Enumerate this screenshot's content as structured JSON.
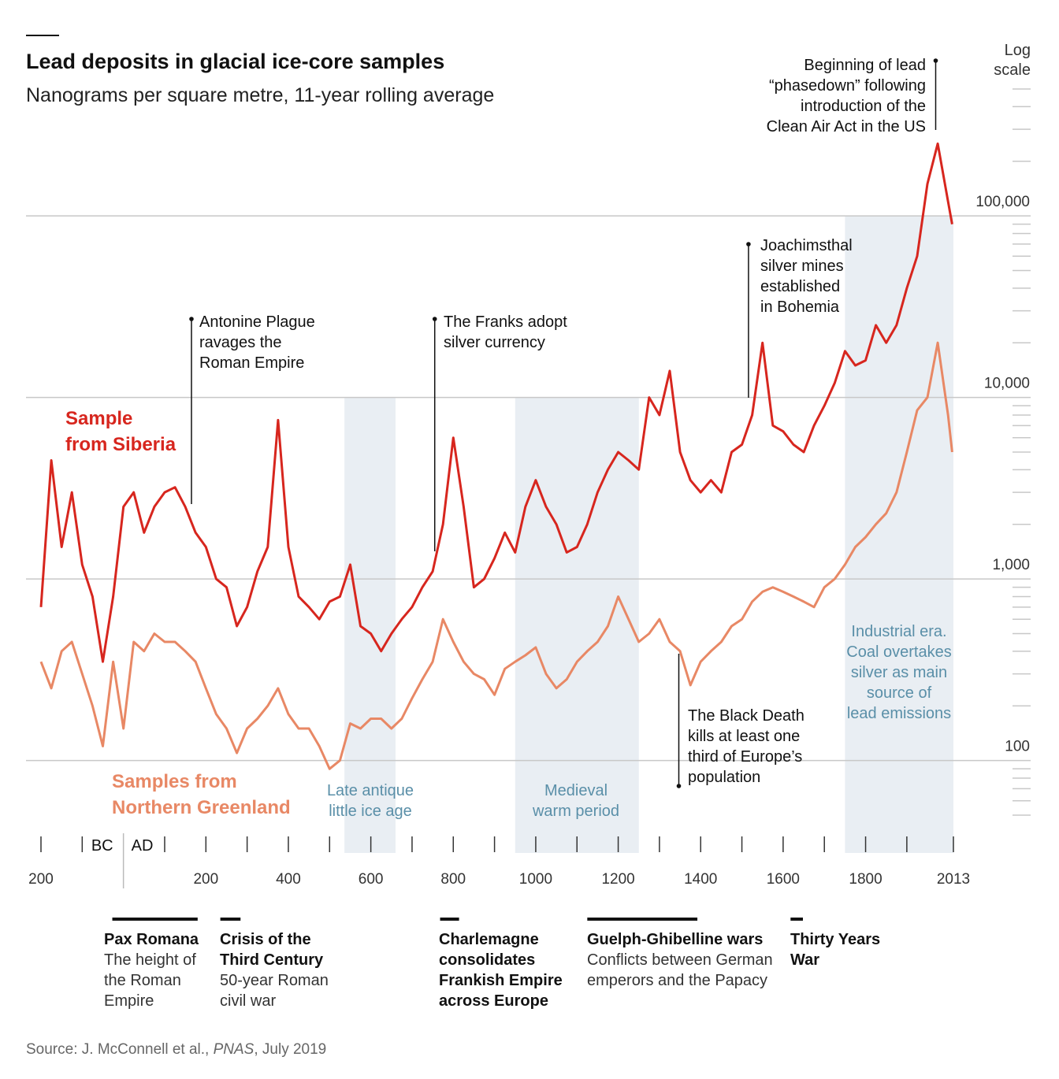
{
  "chart_data": {
    "type": "line",
    "title": "Lead deposits in glacial ice-core samples",
    "subtitle": "Nanograms per square metre, 11-year rolling average",
    "source": {
      "prefix": "Source: J. McConnell et al., ",
      "journal": "PNAS",
      "suffix": ", July 2019"
    },
    "y_axis_label": "Log\nscale",
    "log_scale": true,
    "grid": true,
    "xlim": [
      -200,
      2013
    ],
    "ylim": [
      50,
      500000
    ],
    "xticks": [
      {
        "value": -200,
        "label": "200"
      },
      200,
      400,
      600,
      800,
      1000,
      1200,
      1400,
      1600,
      1800,
      2013
    ],
    "xminorticks": [
      -200,
      -100,
      100,
      200,
      300,
      400,
      500,
      600,
      700,
      800,
      900,
      1000,
      1100,
      1200,
      1300,
      1400,
      1500,
      1600,
      1700,
      1800,
      1900,
      2013
    ],
    "eras": {
      "before": "BC",
      "after": "AD",
      "divider": 0
    },
    "yticks": [
      {
        "value": 100,
        "label": "100"
      },
      {
        "value": 1000,
        "label": "1,000"
      },
      {
        "value": 10000,
        "label": "10,000"
      },
      {
        "value": 100000,
        "label": "100,000"
      }
    ],
    "yminorticks": [
      50,
      60,
      70,
      80,
      90,
      200,
      300,
      400,
      500,
      600,
      700,
      800,
      900,
      2000,
      3000,
      4000,
      5000,
      6000,
      7000,
      8000,
      9000,
      20000,
      30000,
      40000,
      50000,
      60000,
      70000,
      80000,
      90000,
      200000,
      300000,
      400000,
      500000
    ],
    "x": [
      -200,
      -175,
      -150,
      -125,
      -100,
      -75,
      -50,
      -25,
      0,
      25,
      50,
      75,
      100,
      125,
      150,
      175,
      200,
      225,
      250,
      275,
      300,
      325,
      350,
      375,
      400,
      425,
      450,
      475,
      500,
      525,
      550,
      575,
      600,
      625,
      650,
      675,
      700,
      725,
      750,
      775,
      800,
      825,
      850,
      875,
      900,
      925,
      950,
      975,
      1000,
      1025,
      1050,
      1075,
      1100,
      1125,
      1150,
      1175,
      1200,
      1225,
      1250,
      1275,
      1300,
      1325,
      1350,
      1375,
      1400,
      1425,
      1450,
      1475,
      1500,
      1525,
      1550,
      1575,
      1600,
      1625,
      1650,
      1675,
      1700,
      1725,
      1750,
      1775,
      1800,
      1825,
      1850,
      1875,
      1900,
      1925,
      1950,
      1975,
      2000,
      2010
    ],
    "series": [
      {
        "name": "Sample\nfrom Siberia",
        "color": "#d7261e",
        "values": [
          700,
          4500,
          1500,
          3000,
          1200,
          800,
          350,
          800,
          2500,
          3000,
          1800,
          2500,
          3000,
          3200,
          2500,
          1800,
          1500,
          1000,
          900,
          550,
          700,
          1100,
          1500,
          7500,
          1500,
          800,
          700,
          600,
          750,
          800,
          1200,
          550,
          500,
          400,
          500,
          600,
          700,
          900,
          1100,
          2000,
          6000,
          2500,
          900,
          1000,
          1300,
          1800,
          1400,
          2500,
          3500,
          2500,
          2000,
          1400,
          1500,
          2000,
          3000,
          4000,
          5000,
          4500,
          4000,
          10000,
          8000,
          14000,
          5000,
          3500,
          3000,
          3500,
          3000,
          5000,
          5500,
          8000,
          20000,
          7000,
          6500,
          5500,
          5000,
          7000,
          9000,
          12000,
          18000,
          15000,
          16000,
          25000,
          20000,
          25000,
          40000,
          60000,
          150000,
          250000,
          120000,
          90000
        ]
      },
      {
        "name": "Samples from\nNorthern Greenland",
        "color": "#e88865",
        "values": [
          350,
          250,
          400,
          450,
          300,
          200,
          120,
          350,
          150,
          450,
          400,
          500,
          450,
          450,
          400,
          350,
          250,
          180,
          150,
          110,
          150,
          170,
          200,
          250,
          180,
          150,
          150,
          120,
          90,
          100,
          160,
          150,
          170,
          170,
          150,
          170,
          220,
          280,
          350,
          600,
          450,
          350,
          300,
          280,
          230,
          320,
          350,
          380,
          420,
          300,
          250,
          280,
          350,
          400,
          450,
          550,
          800,
          600,
          450,
          500,
          600,
          450,
          400,
          260,
          350,
          400,
          450,
          550,
          600,
          750,
          850,
          900,
          850,
          800,
          750,
          700,
          900,
          1000,
          1200,
          1500,
          1700,
          2000,
          2300,
          3000,
          5000,
          8500,
          10000,
          20000,
          8000,
          5000
        ]
      }
    ],
    "shaded_periods": [
      {
        "label": "Late antique\nlittle ice age",
        "start": 536,
        "end": 660,
        "top": 10000
      },
      {
        "label": "Medieval\nwarm period",
        "start": 950,
        "end": 1250,
        "top": 10000
      },
      {
        "label": "Industrial era.\nCoal overtakes\nsilver as main\nsource of\nlead emissions",
        "start": 1750,
        "end": 2013,
        "top": 100000
      }
    ],
    "annotations": [
      {
        "text": "Antonine Plague\nravages the\nRoman Empire",
        "year": 165
      },
      {
        "text": "The Franks adopt\nsilver currency",
        "year": 755
      },
      {
        "text": "Joachimsthal\nsilver mines\nestablished\nin Bohemia",
        "year": 1516
      },
      {
        "text": "Beginning of lead\n“phasedown” following\nintroduction of the\nClean Air Act in the US",
        "year": 1970
      },
      {
        "text": "The Black Death\nkills at least one\nthird of Europe’s\npopulation",
        "year": 1347
      }
    ],
    "periods": [
      {
        "title": "Pax Romana",
        "text": "The height of\nthe Roman\nEmpire",
        "start": -27,
        "end": 180
      },
      {
        "title": "Crisis of the\nThird Century",
        "text": "50-year Roman\ncivil war",
        "start": 235,
        "end": 284
      },
      {
        "title": "Charlemagne\nconsolidates\nFrankish Empire\nacross Europe",
        "start": 768,
        "end": 814
      },
      {
        "title": "Guelph-Ghibelline wars",
        "text": "Conflicts between German\nemperors and the Papacy",
        "start": 1125,
        "end": 1392
      },
      {
        "title": "Thirty Years\nWar",
        "start": 1618,
        "end": 1648
      }
    ]
  }
}
